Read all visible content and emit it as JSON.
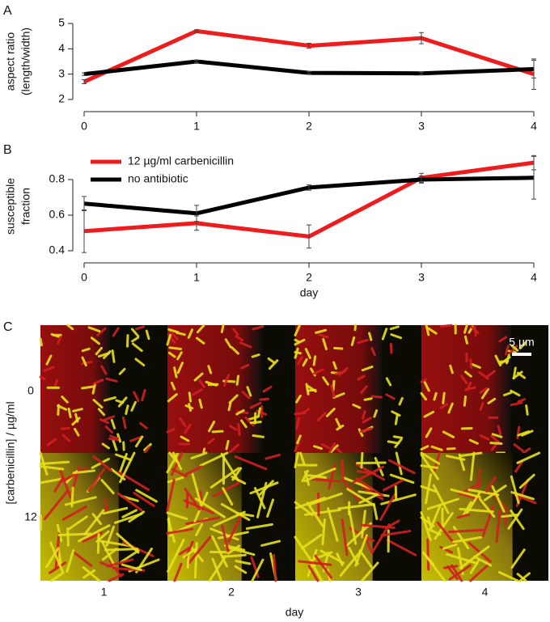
{
  "chart_data": [
    {
      "type": "line",
      "panel_label": "A",
      "ylabel": [
        "aspect ratio",
        "(length/width)"
      ],
      "x": [
        0,
        1,
        2,
        3,
        4
      ],
      "xlim": [
        0,
        4
      ],
      "xticks": [
        0,
        1,
        2,
        3,
        4
      ],
      "ylim": [
        2,
        5
      ],
      "yticks": [
        2,
        3,
        4,
        5
      ],
      "series": [
        {
          "color": "#ee1c1c",
          "values": [
            2.7,
            4.7,
            4.12,
            4.42,
            3.0
          ],
          "errors": [
            0.08,
            0.05,
            0.1,
            0.22,
            0.6
          ]
        },
        {
          "color": "#000000",
          "values": [
            3.0,
            3.5,
            3.05,
            3.03,
            3.2
          ],
          "errors": [
            0.05,
            0.05,
            0.05,
            0.05,
            0.35
          ]
        }
      ]
    },
    {
      "type": "line",
      "panel_label": "B",
      "ylabel": [
        "susceptible",
        "fraction"
      ],
      "xlabel": "day",
      "x": [
        0,
        1,
        2,
        3,
        4
      ],
      "xlim": [
        0,
        4
      ],
      "xticks": [
        0,
        1,
        2,
        3,
        4
      ],
      "ylim": [
        0.4,
        0.9
      ],
      "yticks": [
        0.4,
        0.6,
        0.8
      ],
      "legend": "upper left",
      "series": [
        {
          "name": "12 µg/ml carbenicillin",
          "color": "#ee1c1c",
          "values": [
            0.51,
            0.555,
            0.48,
            0.81,
            0.895
          ],
          "errors": [
            0.12,
            0.04,
            0.065,
            0.025,
            0.04
          ]
        },
        {
          "name": "no antibiotic",
          "color": "#000000",
          "values": [
            0.665,
            0.61,
            0.755,
            0.8,
            0.81
          ],
          "errors": [
            0.04,
            0.045,
            0.015,
            0.02,
            0.12
          ]
        }
      ]
    }
  ],
  "micrographs": {
    "panel_label": "C",
    "ylabel": "[carbenicillin] / µg/ml",
    "xlabel": "day",
    "row_labels": [
      "0",
      "12"
    ],
    "col_labels": [
      "1",
      "2",
      "3",
      "4"
    ],
    "scale_bar": "5 µm"
  }
}
